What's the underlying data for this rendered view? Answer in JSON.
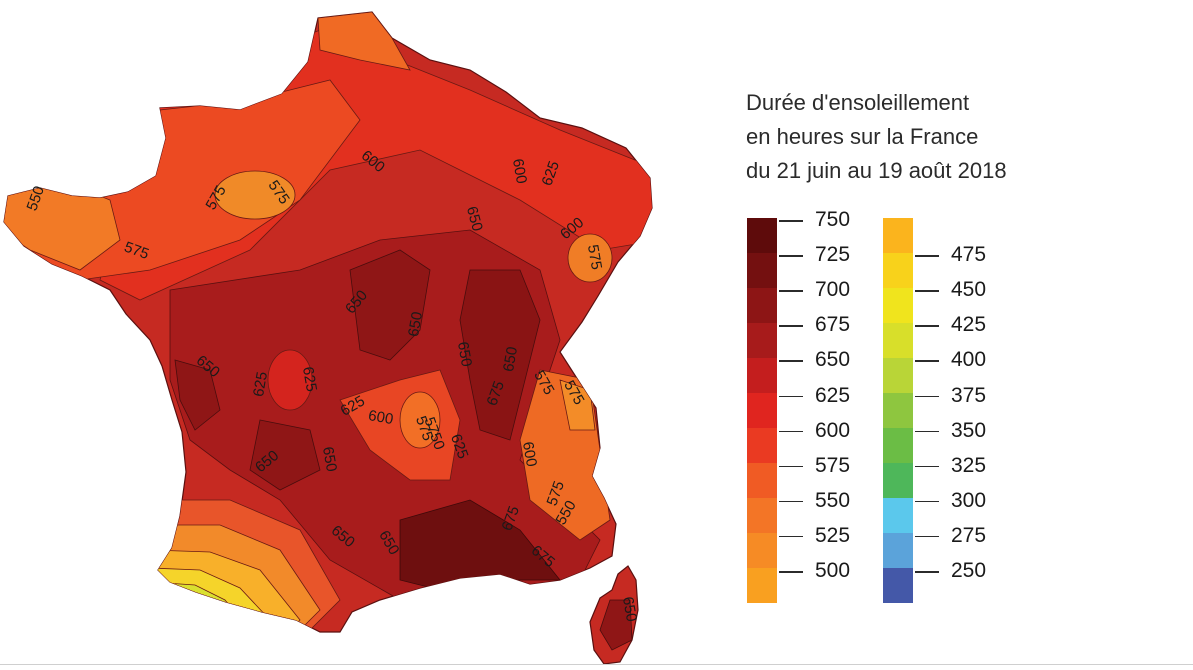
{
  "title": {
    "line1": "Durée d'ensoleillement",
    "line2": "en heures sur la France",
    "line3": "du 21 juin au 19 août 2018"
  },
  "legend": {
    "left_column": {
      "colors": [
        "#5e0b0b",
        "#741010",
        "#8d1515",
        "#a71b1b",
        "#c41e1e",
        "#e0251f",
        "#ea3a22",
        "#f05b24",
        "#f37526",
        "#f68b25",
        "#f9a020"
      ],
      "ticks": [
        "750",
        "725",
        "700",
        "675",
        "650",
        "625",
        "600",
        "575",
        "550",
        "525",
        "500"
      ]
    },
    "right_column": {
      "colors": [
        "#fbb41d",
        "#f8d21b",
        "#f0e41d",
        "#d8df2a",
        "#b9d537",
        "#8ec63f",
        "#6bbd45",
        "#4eb75a",
        "#5bc8ec",
        "#5ba3da",
        "#4458a8"
      ],
      "ticks": [
        "475",
        "450",
        "425",
        "400",
        "375",
        "350",
        "325",
        "300",
        "275",
        "250"
      ]
    }
  },
  "map": {
    "contour_labels": [
      {
        "text": "550",
        "rot": -70
      },
      {
        "text": "575",
        "rot": 20
      },
      {
        "text": "575",
        "rot": -60
      },
      {
        "text": "575",
        "rot": 55
      },
      {
        "text": "600",
        "rot": 40
      },
      {
        "text": "600",
        "rot": 80
      },
      {
        "text": "625",
        "rot": -70
      },
      {
        "text": "650",
        "rot": 75
      },
      {
        "text": "600",
        "rot": -40
      },
      {
        "text": "575",
        "rot": 80
      },
      {
        "text": "650",
        "rot": -50
      },
      {
        "text": "650",
        "rot": -80
      },
      {
        "text": "650",
        "rot": 80
      },
      {
        "text": "650",
        "rot": -80
      },
      {
        "text": "625",
        "rot": -80
      },
      {
        "text": "625",
        "rot": 80
      },
      {
        "text": "650",
        "rot": 40
      },
      {
        "text": "625",
        "rot": -30
      },
      {
        "text": "600",
        "rot": 10
      },
      {
        "text": "575",
        "rot": 70
      },
      {
        "text": "650",
        "rot": -40
      },
      {
        "text": "650",
        "rot": 80
      },
      {
        "text": "675",
        "rot": -70
      },
      {
        "text": "575",
        "rot": 60
      },
      {
        "text": "575",
        "rot": 60
      },
      {
        "text": "600",
        "rot": 80
      },
      {
        "text": "575",
        "rot": -70
      },
      {
        "text": "550",
        "rot": -60
      },
      {
        "text": "650",
        "rot": 40
      },
      {
        "text": "650",
        "rot": 60
      },
      {
        "text": "675",
        "rot": -70
      },
      {
        "text": "675",
        "rot": 40
      },
      {
        "text": "650",
        "rot": 80
      },
      {
        "text": "5750",
        "rot": 70
      },
      {
        "text": "625",
        "rot": 70
      }
    ]
  }
}
